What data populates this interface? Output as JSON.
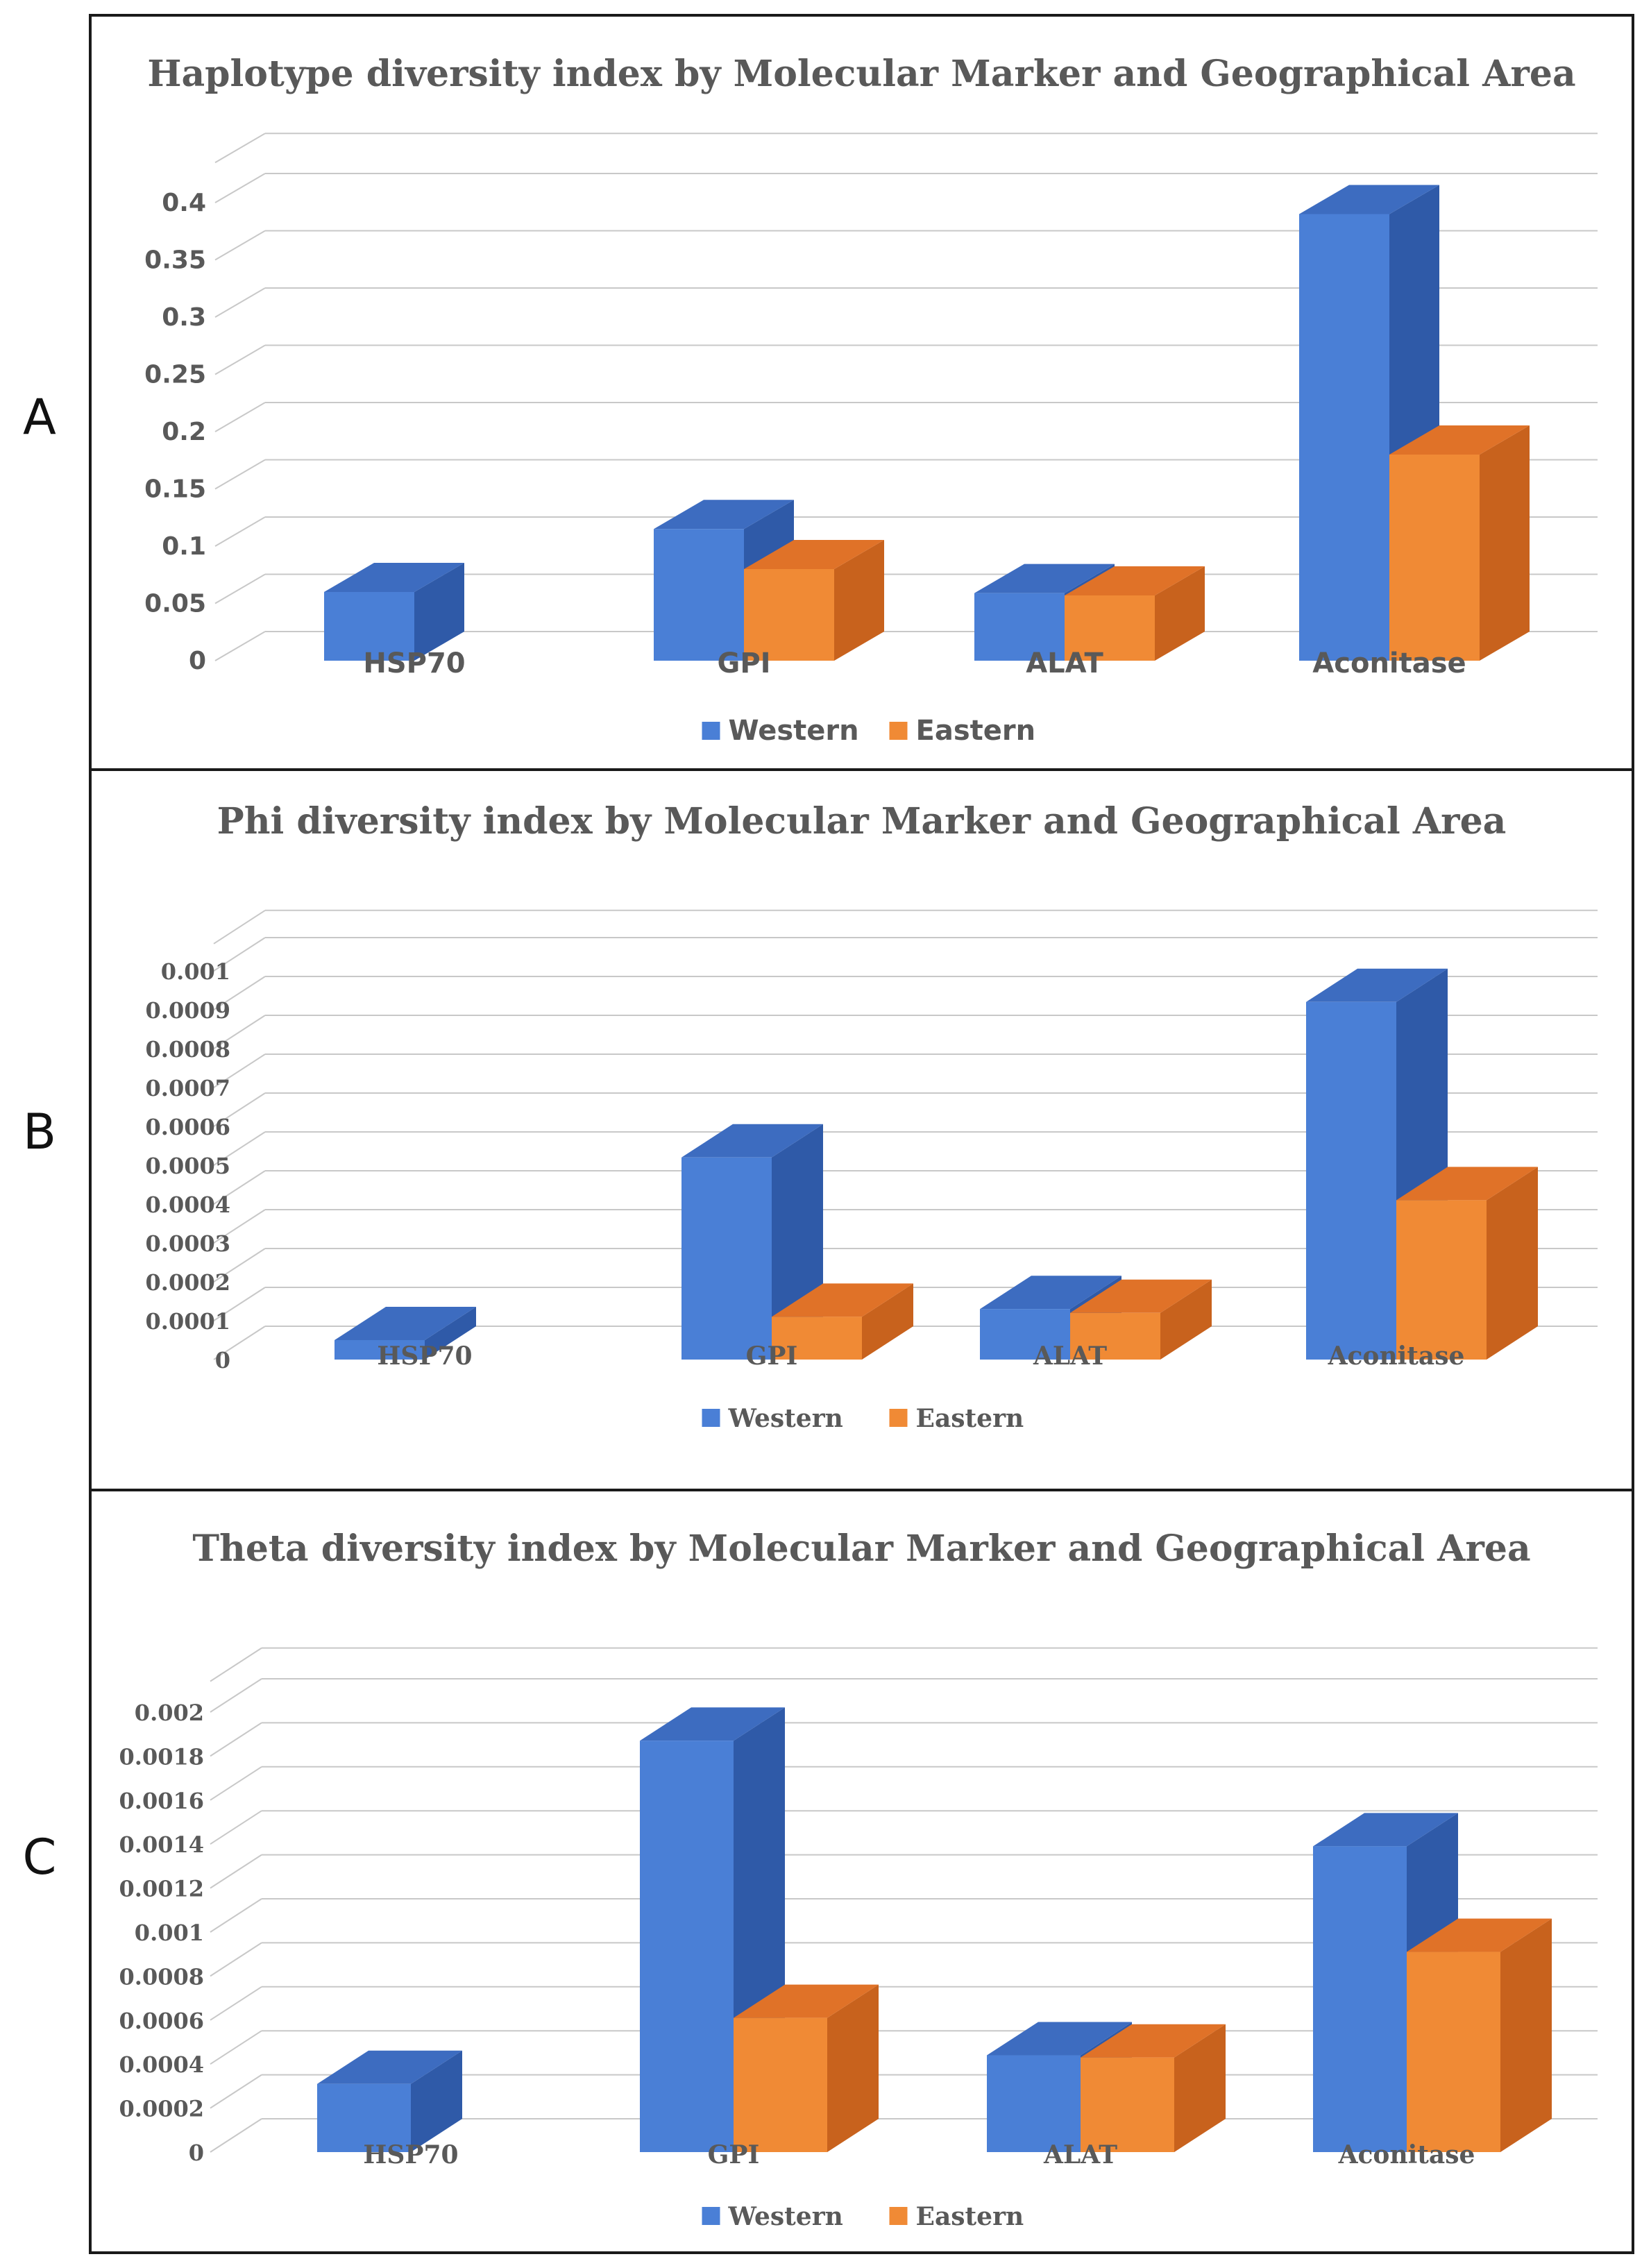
{
  "panel_labels": [
    "A",
    "B",
    "C"
  ],
  "colors": {
    "western_front": "#4a7fd6",
    "western_top": "#3d6cc0",
    "western_side": "#2f5aa8",
    "eastern_front": "#f08a35",
    "eastern_top": "#e07228",
    "eastern_side": "#c8621d",
    "grid": "#c8c8c8",
    "text": "#595959"
  },
  "chart_data": [
    {
      "type": "bar",
      "title": "Haplotype diversity index by Molecular Marker and Geographical Area",
      "categories": [
        "HSP70",
        "GPI",
        "ALAT",
        "Aconitase"
      ],
      "series": [
        {
          "name": "Western",
          "values": [
            0.06,
            0.115,
            0.059,
            0.39
          ]
        },
        {
          "name": "Eastern",
          "values": [
            0,
            0.08,
            0.057,
            0.18
          ]
        }
      ],
      "ylim": [
        0,
        0.4
      ],
      "yticks": [
        "0",
        "0.05",
        "0.1",
        "0.15",
        "0.2",
        "0.25",
        "0.3",
        "0.35",
        "0.4"
      ],
      "grid": true,
      "legend": "bottom",
      "xlabel": "",
      "ylabel": ""
    },
    {
      "type": "bar",
      "title": "Phi diversity index by Molecular Marker and Geographical Area",
      "categories": [
        "HSP70",
        "GPI",
        "ALAT",
        "Aconitase"
      ],
      "series": [
        {
          "name": "Western",
          "values": [
            5e-05,
            0.00052,
            0.00013,
            0.00092
          ]
        },
        {
          "name": "Eastern",
          "values": [
            0,
            0.00011,
            0.00012,
            0.00041
          ]
        }
      ],
      "ylim": [
        0,
        0.001
      ],
      "yticks": [
        "0",
        "0.0001",
        "0.0002",
        "0.0003",
        "0.0004",
        "0.0005",
        "0.0006",
        "0.0007",
        "0.0008",
        "0.0009",
        "0.001"
      ],
      "grid": true,
      "legend": "bottom",
      "xlabel": "",
      "ylabel": ""
    },
    {
      "type": "bar",
      "title": "Theta diversity index by Molecular Marker and Geographical Area",
      "categories": [
        "HSP70",
        "GPI",
        "ALAT",
        "Aconitase"
      ],
      "series": [
        {
          "name": "Western",
          "values": [
            0.00031,
            0.00187,
            0.00044,
            0.00139
          ]
        },
        {
          "name": "Eastern",
          "values": [
            0,
            0.00061,
            0.00043,
            0.00091
          ]
        }
      ],
      "ylim": [
        0,
        0.002
      ],
      "yticks": [
        "0",
        "0.0002",
        "0.0004",
        "0.0006",
        "0.0008",
        "0.001",
        "0.0012",
        "0.0014",
        "0.0016",
        "0.0018",
        "0.002"
      ],
      "grid": true,
      "legend": "bottom",
      "xlabel": "",
      "ylabel": ""
    }
  ]
}
